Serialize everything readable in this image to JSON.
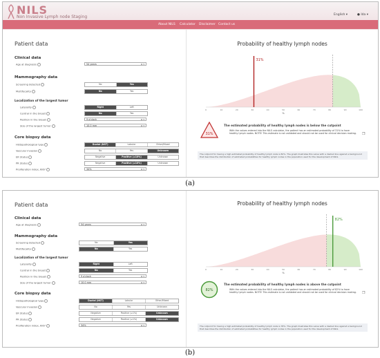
{
  "app": {
    "name": "NILS",
    "subtitle": "Non Invasive Lymph node Staging",
    "language": "English",
    "user": "Ida"
  },
  "nav": [
    "About NILS",
    "Calculator",
    "Disclaimer",
    "Contact us"
  ],
  "left": {
    "title": "Patient data",
    "clinical": {
      "heading": "Clinical data",
      "age_label": "Age at diagnosis",
      "age_value": "54 years"
    },
    "mammography": {
      "heading": "Mammography data",
      "screening_label": "Screening detected",
      "multifocality_label": "Multifocality"
    },
    "largest": {
      "heading": "Localization of the largest tumor",
      "laterality_label": "Laterality",
      "central_label": "Central in the breast",
      "position_label": "Position in the breast",
      "position_value": "9 o'clock",
      "size_label": "Size of the largest tumor",
      "size_value": "10.0 mm"
    },
    "biopsy": {
      "heading": "Core biopsy data",
      "histo_label": "Histopathological type",
      "vascular_label": "Vascular invasion",
      "er_label": "ER Status",
      "pr_label": "PR Status",
      "ki67_label": "Proliferation index, Ki67",
      "ki67_value": "34%"
    },
    "opts": {
      "no": "No",
      "yes": "Yes",
      "right": "Right",
      "left": "Left",
      "ductal": "Ductal (NST)",
      "lobular": "Lobular",
      "other": "Other/Mixed",
      "unknown": "Unknown",
      "negative": "Negative",
      "pos_a": "Positive (≥10%)",
      "pos_b": "Positive (≥1%)"
    }
  },
  "a": {
    "chart_title": "Probability of healthy lymph nodes",
    "marker_label": "31%",
    "x_axis_label": "%",
    "ticks": [
      "0",
      "10",
      "20",
      "30",
      "40",
      "50",
      "60",
      "70",
      "80",
      "90",
      "100"
    ],
    "badge": "31%",
    "headline": "The estimated probability of healthy lymph nodes is below the cutpoint",
    "body": "With the values entered into the NILS calculator, the patient has an estimated probability of 31% to have healthy lymph nodes. NOTE! This estimate is not validated and should not be used for clinical decision making.",
    "note": "The cutpoint for having a high estimated probability of healthy lymph node is 82%. The graph illustrates this value with a dashed line against a background that describes the distribution of estimated probabilities for healthy lymph nodes in the population used for the development of NILS."
  },
  "b": {
    "chart_title": "Probability of healthy lymph nodes",
    "marker_label": "82%",
    "x_axis_label": "%",
    "ticks": [
      "0",
      "10",
      "20",
      "30",
      "40",
      "50",
      "60",
      "70",
      "80",
      "90",
      "100"
    ],
    "badge": "82%",
    "headline": "The estimated probability of healthy lymph nodes is above the cutpoint",
    "body": "With the values entered into the NILS calculator, the patient has an estimated probability of 82% to have healthy lymph nodes. NOTE! This estimate is not validated and should not be used for clinical decision making.",
    "note": "The cutpoint for having a high estimated probability of healthy lymph node is 78%. The graph illustrates this value with a dashed line against a background that describes the distribution of estimated probabilities for healthy lymph nodes in the population used for the development of NILS."
  },
  "captions": {
    "a": "(a)",
    "b": "(b)"
  },
  "chart_data": [
    {
      "type": "area",
      "title": "Probability of healthy lymph nodes",
      "xlabel": "%",
      "xlim": [
        0,
        100
      ],
      "cutpoint": 82,
      "value": 31,
      "marker_label": "31%"
    },
    {
      "type": "area",
      "title": "Probability of healthy lymph nodes",
      "xlabel": "%",
      "xlim": [
        0,
        100
      ],
      "cutpoint": 78,
      "value": 82,
      "marker_label": "82%"
    }
  ],
  "colors": {
    "brand": "#d96b79",
    "below": "#f8dcdc",
    "above": "#d6ecc9",
    "marker_a": "#b22222",
    "marker_b": "#4a9a3a"
  }
}
